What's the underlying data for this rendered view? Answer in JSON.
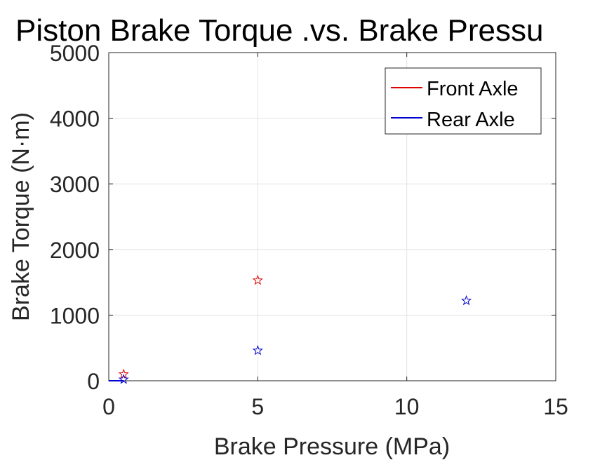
{
  "chart_data": {
    "type": "scatter",
    "title": "Piston Brake Torque .vs. Brake Pressu",
    "xlabel": "Brake Pressure (MPa)",
    "ylabel": "Brake Torque (N·m)",
    "xlim": [
      0,
      15
    ],
    "ylim": [
      0,
      5000
    ],
    "xticks": [
      0,
      5,
      10,
      15
    ],
    "yticks": [
      0,
      1000,
      2000,
      3000,
      4000,
      5000
    ],
    "xtick_labels": [
      "0",
      "5",
      "10",
      "15"
    ],
    "ytick_labels": [
      "0",
      "1000",
      "2000",
      "3000",
      "4000",
      "5000"
    ],
    "grid": true,
    "legend_position": "top-right",
    "series": [
      {
        "name": "Front Axle",
        "color": "#e00000",
        "marker": "star",
        "line_x": [
          0,
          0.5
        ],
        "line_y": [
          0,
          0
        ],
        "x": [
          0.5,
          5
        ],
        "y": [
          100,
          1530
        ]
      },
      {
        "name": "Rear Axle",
        "color": "#0000d0",
        "marker": "star",
        "line_x": [
          0,
          0.5
        ],
        "line_y": [
          0,
          0
        ],
        "x": [
          0.5,
          5,
          12
        ],
        "y": [
          20,
          460,
          1220
        ]
      }
    ]
  }
}
